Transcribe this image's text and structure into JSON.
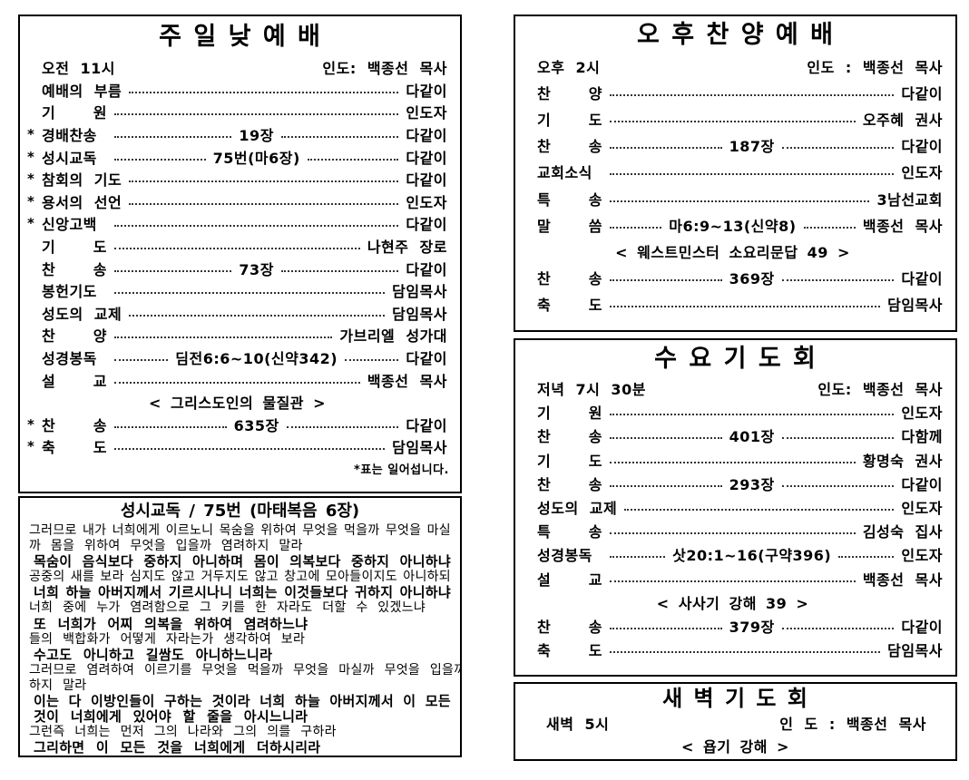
{
  "services": {
    "sunday": {
      "title": "주 일 낮 예 배",
      "time": "오전 11시",
      "leader": "인도: 백종선 목사",
      "footnote": "*표는 일어섭니다.",
      "rows": [
        {
          "star": "",
          "label": "예배의 부름",
          "center": "",
          "right": "다같이"
        },
        {
          "star": "",
          "label": "기 원",
          "center": "",
          "right": "인도자"
        },
        {
          "star": "*",
          "label": "경배찬송",
          "center": "19장",
          "right": "다같이"
        },
        {
          "star": "*",
          "label": "성시교독",
          "center": "75번(마6장)",
          "right": "다같이"
        },
        {
          "star": "*",
          "label": "참회의 기도",
          "center": "",
          "right": "다같이"
        },
        {
          "star": "*",
          "label": "용서의 선언",
          "center": "",
          "right": "인도자"
        },
        {
          "star": "*",
          "label": "신앙고백",
          "center": "",
          "right": "다같이"
        },
        {
          "star": "",
          "label": "기 도",
          "center": "",
          "right": "나현주 장로"
        },
        {
          "star": "",
          "label": "찬 송",
          "center": "73장",
          "right": "다같이"
        },
        {
          "star": "",
          "label": "봉헌기도",
          "center": "",
          "right": "담임목사"
        },
        {
          "star": "",
          "label": "성도의 교제",
          "center": "",
          "right": "담임목사"
        },
        {
          "star": "",
          "label": "찬 양",
          "center": "",
          "right": "가브리엘 성가대"
        },
        {
          "star": "",
          "label": "성경봉독",
          "center": "딤전6:6~10(신약342)",
          "right": "다같이"
        },
        {
          "star": "",
          "label": "설 교",
          "center": "",
          "right": "백종선 목사"
        },
        {
          "subtitle": "< 그리스도인의 물질관 >"
        },
        {
          "star": "*",
          "label": "찬 송",
          "center": "635장",
          "right": "다같이"
        },
        {
          "star": "*",
          "label": "축 도",
          "center": "",
          "right": "담임목사"
        }
      ]
    },
    "afternoon": {
      "title": "오 후 찬 양 예 배",
      "time": "오후 2시",
      "leader": "인도 : 백종선 목사",
      "rows": [
        {
          "star": "",
          "label": "찬 양",
          "center": "",
          "right": "다같이"
        },
        {
          "star": "",
          "label": "기 도",
          "center": "",
          "right": "오주혜 권사"
        },
        {
          "star": "",
          "label": "찬 송",
          "center": "187장",
          "right": "다같이"
        },
        {
          "star": "",
          "label": "교회소식",
          "center": "",
          "right": "인도자"
        },
        {
          "star": "",
          "label": "특 송",
          "center": "",
          "right": "3남선교회"
        },
        {
          "star": "",
          "label": "말 씀",
          "center": "마6:9~13(신약8)",
          "right": "백종선 목사"
        },
        {
          "subtitle": "< 웨스트민스터 소요리문답 49 >"
        },
        {
          "star": "",
          "label": "찬 송",
          "center": "369장",
          "right": "다같이"
        },
        {
          "star": "",
          "label": "축 도",
          "center": "",
          "right": "담임목사"
        }
      ]
    },
    "wednesday": {
      "title": "수 요 기 도 회",
      "time": "저녁 7시 30분",
      "leader": "인도: 백종선 목사",
      "rows": [
        {
          "star": "",
          "label": "기 원",
          "center": "",
          "right": "인도자"
        },
        {
          "star": "",
          "label": "찬 송",
          "center": "401장",
          "right": "다함께"
        },
        {
          "star": "",
          "label": "기 도",
          "center": "",
          "right": "황명숙 권사"
        },
        {
          "star": "",
          "label": "찬 송",
          "center": "293장",
          "right": "다같이"
        },
        {
          "star": "",
          "label": "성도의 교제",
          "center": "",
          "right": "인도자"
        },
        {
          "star": "",
          "label": "특 송",
          "center": "",
          "right": "김성숙 집사"
        },
        {
          "star": "",
          "label": "성경봉독",
          "center": "삿20:1~16(구약396)",
          "right": "인도자"
        },
        {
          "star": "",
          "label": "설 교",
          "center": "",
          "right": "백종선 목사"
        },
        {
          "subtitle": "< 사사기 강해 39 >"
        },
        {
          "star": "",
          "label": "찬 송",
          "center": "379장",
          "right": "다같이"
        },
        {
          "star": "",
          "label": "축 도",
          "center": "",
          "right": "담임목사"
        }
      ]
    },
    "dawn": {
      "title": "새 벽 기 도 회",
      "time": "새벽 5시",
      "leader": "인 도 : 백종선 목사",
      "subtitle": "< 욥기 강해 >"
    }
  },
  "reading": {
    "title": "성시교독 / 75번 (마태복음 6장)",
    "lines": [
      {
        "text": "그러므로 내가 너희에게 이르노니 목숨을 위하여 무엇을 먹을까 무엇을 마실",
        "bold": false,
        "justify": true
      },
      {
        "text": "까 몸을 위하여 무엇을 입을까 염려하지 말라",
        "bold": false,
        "justify": false
      },
      {
        "text": "목숨이 음식보다 중하지 아니하며 몸이 의복보다 중하지 아니하냐",
        "bold": true,
        "justify": true
      },
      {
        "text": "공중의 새를 보라 심지도 않고 거두지도 않고 창고에 모아들이지도 아니하되",
        "bold": false,
        "justify": true
      },
      {
        "text": "너희 하늘 아버지께서 기르시나니 너희는 이것들보다 귀하지 아니하냐",
        "bold": true,
        "justify": true
      },
      {
        "text": "너희 중에 누가 염려함으로 그 키를 한 자라도 더할 수 있겠느냐",
        "bold": false,
        "justify": false
      },
      {
        "text": "또 너희가 어찌 의복을 위하여 염려하느냐",
        "bold": true,
        "justify": false
      },
      {
        "text": "들의 백합화가 어떻게 자라는가 생각하여 보라",
        "bold": false,
        "justify": false
      },
      {
        "text": "수고도 아니하고 길쌈도 아니하느니라",
        "bold": true,
        "justify": false
      },
      {
        "text": "그러므로 염려하여 이르기를 무엇을 먹을까 무엇을 마실까 무엇을 입을까",
        "bold": false,
        "justify": false
      },
      {
        "text": "하지 말라",
        "bold": false,
        "justify": false
      },
      {
        "text": "이는 다 이방인들이 구하는 것이라 너희 하늘 아버지께서 이 모든",
        "bold": true,
        "justify": true
      },
      {
        "text": "것이 너희에게 있어야 할 줄을 아시느니라",
        "bold": true,
        "justify": false
      },
      {
        "text": "그런즉 너희는 먼저 그의 나라와 그의 의를 구하라",
        "bold": false,
        "justify": false
      },
      {
        "text": "그리하면 이 모든 것을 너희에게 더하시리라",
        "bold": true,
        "justify": false
      }
    ]
  }
}
